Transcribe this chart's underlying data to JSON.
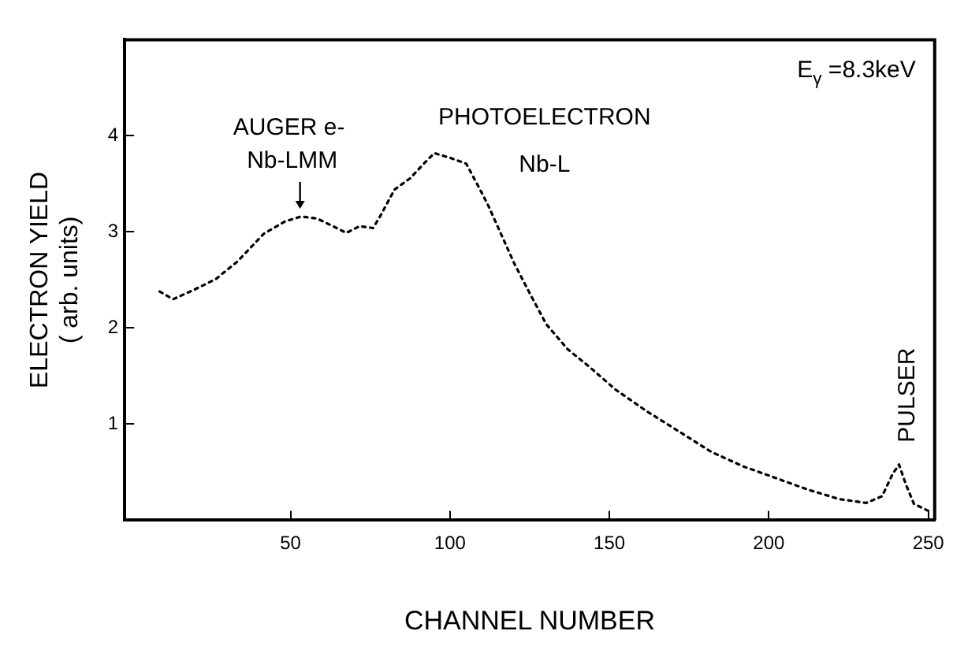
{
  "chart_data": {
    "type": "line",
    "xlabel": "CHANNEL NUMBER",
    "ylabel": "ELECTRON YIELD\n( arb. units)",
    "xlim": [
      -2,
      252
    ],
    "xticks": [
      50,
      100,
      150,
      200,
      250
    ],
    "ylim": [
      0,
      5
    ],
    "yticks": [
      1,
      2,
      3,
      4
    ],
    "grid": false,
    "legend": false,
    "marker": "none",
    "line_style": "dotted",
    "annotations": [
      "E$_{γ}$ =8.3keV",
      {
        "text": "AUGER e-\nNb-LMM",
        "x": 53,
        "y": 3.16
      },
      {
        "text": "PHOTOELECTRON\nNb-L",
        "x": 100,
        "y": 3.82
      },
      {
        "text": "PULSER",
        "x": 241,
        "y": 0.58
      }
    ],
    "series": [
      {
        "color": "#000000",
        "x": [
          9,
          13.2,
          19.9,
          26.6,
          33.3,
          41.6,
          48.3,
          53.3,
          58.3,
          63.3,
          67.5,
          71.7,
          75.9,
          78.4,
          82.6,
          87.6,
          91.8,
          95.1,
          100.1,
          105.1,
          108.5,
          111.8,
          116,
          120.2,
          125.2,
          130.2,
          136.9,
          143.6,
          151.9,
          161.9,
          172,
          182,
          192,
          202.1,
          212.1,
          222.1,
          230.5,
          235.5,
          238.8,
          240.8,
          243,
          245.5,
          250.5
        ],
        "values": [
          2.38,
          2.3,
          2.4,
          2.51,
          2.69,
          2.98,
          3.11,
          3.16,
          3.14,
          3.06,
          2.99,
          3.06,
          3.04,
          3.18,
          3.44,
          3.56,
          3.71,
          3.82,
          3.77,
          3.71,
          3.5,
          3.29,
          2.98,
          2.67,
          2.35,
          2.04,
          1.78,
          1.6,
          1.36,
          1.13,
          0.92,
          0.71,
          0.56,
          0.44,
          0.32,
          0.22,
          0.18,
          0.25,
          0.48,
          0.58,
          0.37,
          0.17,
          0.09
        ]
      }
    ]
  }
}
